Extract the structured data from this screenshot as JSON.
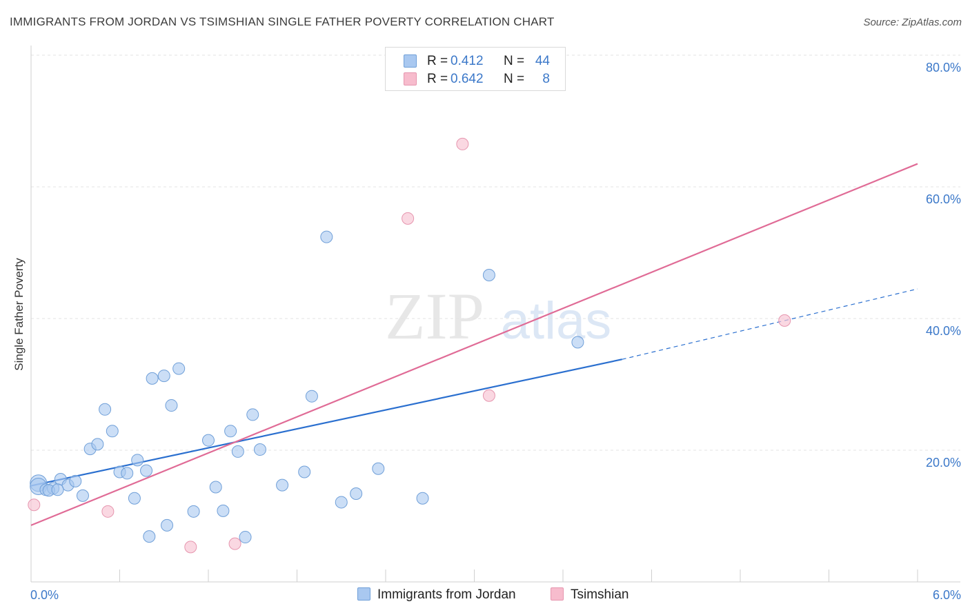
{
  "header": {
    "title": "IMMIGRANTS FROM JORDAN VS TSIMSHIAN SINGLE FATHER POVERTY CORRELATION CHART",
    "source": "Source: ZipAtlas.com"
  },
  "watermark": {
    "zip": "ZIP",
    "atlas": "atlas"
  },
  "legend": {
    "rows": [
      {
        "r_label": "R =",
        "r_value": "0.412",
        "n_label": "N =",
        "n_value": "44",
        "color": "#a9c8f0"
      },
      {
        "r_label": "R =",
        "r_value": "0.642",
        "n_label": "N =",
        "n_value": "8",
        "color": "#f7bccd"
      }
    ]
  },
  "bottom_legend": {
    "series1": "Immigrants from Jordan",
    "series2": "Tsimshian"
  },
  "colors": {
    "blue_fill": "#a9c8f0",
    "blue_stroke": "#6f9fd8",
    "blue_line": "#2a6fcf",
    "pink_fill": "#f7c3d2",
    "pink_stroke": "#e695ae",
    "pink_line": "#e06b96",
    "tick_label": "#3b78c9",
    "grid": "#e3e3e3"
  },
  "chart_data": {
    "type": "scatter",
    "title": "IMMIGRANTS FROM JORDAN VS TSIMSHIAN SINGLE FATHER POVERTY CORRELATION CHART",
    "xlabel": "",
    "ylabel": "Single Father Poverty",
    "xlim": [
      0,
      6.0
    ],
    "ylim": [
      0,
      80
    ],
    "x_tick_labels": [
      "0.0%",
      "6.0%"
    ],
    "y_ticks": [
      20,
      40,
      60,
      80
    ],
    "y_tick_labels": [
      "20.0%",
      "40.0%",
      "60.0%",
      "80.0%"
    ],
    "grid": true,
    "legend_position": "top-center",
    "series": [
      {
        "name": "Immigrants from Jordan",
        "r": 0.412,
        "n": 44,
        "points": [
          [
            0.05,
            15.0
          ],
          [
            0.05,
            14.5
          ],
          [
            0.1,
            14.0
          ],
          [
            0.15,
            14.2
          ],
          [
            0.2,
            15.6
          ],
          [
            0.25,
            14.7
          ],
          [
            0.3,
            15.3
          ],
          [
            0.35,
            13.1
          ],
          [
            0.4,
            20.2
          ],
          [
            0.45,
            20.9
          ],
          [
            0.5,
            26.2
          ],
          [
            0.55,
            22.9
          ],
          [
            0.6,
            16.7
          ],
          [
            0.65,
            16.5
          ],
          [
            0.7,
            12.7
          ],
          [
            0.72,
            18.5
          ],
          [
            0.78,
            16.9
          ],
          [
            0.8,
            6.9
          ],
          [
            0.82,
            30.9
          ],
          [
            0.9,
            31.3
          ],
          [
            0.92,
            8.6
          ],
          [
            0.95,
            26.8
          ],
          [
            1.0,
            32.4
          ],
          [
            1.1,
            10.7
          ],
          [
            1.2,
            21.5
          ],
          [
            1.25,
            14.4
          ],
          [
            1.3,
            10.8
          ],
          [
            1.35,
            22.9
          ],
          [
            1.4,
            19.8
          ],
          [
            1.45,
            6.8
          ],
          [
            1.5,
            25.4
          ],
          [
            1.55,
            20.1
          ],
          [
            1.7,
            14.7
          ],
          [
            1.85,
            16.7
          ],
          [
            1.9,
            28.2
          ],
          [
            2.0,
            52.4
          ],
          [
            2.1,
            12.1
          ],
          [
            2.2,
            13.4
          ],
          [
            2.35,
            17.2
          ],
          [
            2.65,
            12.7
          ],
          [
            3.1,
            46.6
          ],
          [
            3.7,
            36.4
          ],
          [
            0.12,
            13.9
          ],
          [
            0.18,
            14.0
          ]
        ],
        "trend": {
          "x": [
            0,
            4.0
          ],
          "y": [
            14.6,
            33.8
          ],
          "extended_to": [
            6.0,
            44.5
          ]
        }
      },
      {
        "name": "Tsimshian",
        "r": 0.642,
        "n": 8,
        "points": [
          [
            0.02,
            11.7
          ],
          [
            0.52,
            10.7
          ],
          [
            1.08,
            5.3
          ],
          [
            1.38,
            5.8
          ],
          [
            2.55,
            55.2
          ],
          [
            2.92,
            66.5
          ],
          [
            3.1,
            28.3
          ],
          [
            5.1,
            39.7
          ]
        ],
        "trend": {
          "x": [
            0,
            6.0
          ],
          "y": [
            8.6,
            63.5
          ]
        }
      }
    ]
  }
}
